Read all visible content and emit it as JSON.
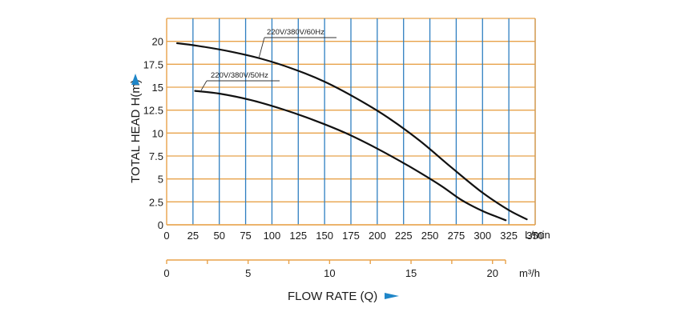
{
  "chart_data": {
    "type": "line",
    "xlabel": "FLOW RATE (Q)",
    "ylabel": "TOTAL HEAD H(m)",
    "x_unit": "L/min",
    "x2_unit": "m³/h",
    "xlim": [
      0,
      350
    ],
    "ylim": [
      0,
      22.5
    ],
    "x_ticks": [
      0,
      25,
      50,
      75,
      100,
      125,
      150,
      175,
      200,
      225,
      250,
      275,
      300,
      325,
      350
    ],
    "y_ticks": [
      0,
      2.5,
      5,
      7.5,
      10,
      12.5,
      15,
      17.5,
      20
    ],
    "y_tick_labels": [
      "0",
      "2.5",
      "5",
      "7.5",
      "10",
      "12.5",
      "15",
      "17.5",
      "20"
    ],
    "x2_ticks": [
      0,
      5,
      10,
      15,
      20
    ],
    "x2_minor_ticks": [
      0,
      2.5,
      5,
      7.5,
      10,
      12.5,
      15,
      17.5,
      20
    ],
    "grid": true,
    "colors": {
      "grid_vertical": "#2f7fc1",
      "grid_horizontal": "#e8a24a",
      "curve": "#111111",
      "arrow": "#1f86c8"
    },
    "series": [
      {
        "name": "220V/380V/60Hz",
        "x": [
          10,
          30,
          60,
          90,
          120,
          150,
          180,
          210,
          240,
          270,
          300,
          325,
          342
        ],
        "y": [
          19.8,
          19.5,
          18.9,
          18.1,
          17.0,
          15.6,
          13.8,
          11.7,
          9.2,
          6.3,
          3.5,
          1.6,
          0.6
        ]
      },
      {
        "name": "220V/380V/50Hz",
        "x": [
          27,
          50,
          80,
          110,
          140,
          170,
          200,
          230,
          260,
          280,
          300,
          313,
          322
        ],
        "y": [
          14.6,
          14.3,
          13.6,
          12.6,
          11.4,
          10.0,
          8.3,
          6.4,
          4.3,
          2.7,
          1.5,
          0.9,
          0.5
        ]
      }
    ]
  }
}
